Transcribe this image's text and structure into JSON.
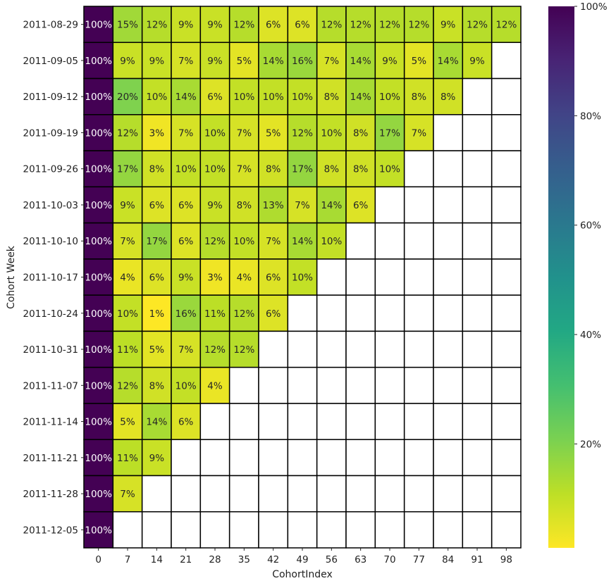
{
  "chart_data": {
    "type": "heatmap",
    "title": "",
    "xlabel": "CohortIndex",
    "ylabel": "Cohort Week",
    "colormap": "viridis_r",
    "value_range": [
      0.01,
      1.0
    ],
    "missing_color": "#ffffff",
    "grid_line_color": "#000000",
    "x_categories": [
      "0",
      "7",
      "14",
      "21",
      "28",
      "35",
      "42",
      "49",
      "56",
      "63",
      "70",
      "77",
      "84",
      "91",
      "98"
    ],
    "y_categories": [
      "2011-08-29",
      "2011-09-05",
      "2011-09-12",
      "2011-09-19",
      "2011-09-26",
      "2011-10-03",
      "2011-10-10",
      "2011-10-17",
      "2011-10-24",
      "2011-10-31",
      "2011-11-07",
      "2011-11-14",
      "2011-11-21",
      "2011-11-28",
      "2011-12-05"
    ],
    "values": [
      [
        100,
        15,
        12,
        9,
        9,
        12,
        6,
        6,
        12,
        12,
        12,
        12,
        9,
        12,
        12
      ],
      [
        100,
        9,
        9,
        7,
        9,
        5,
        14,
        16,
        7,
        14,
        9,
        5,
        14,
        9,
        null
      ],
      [
        100,
        20,
        10,
        14,
        6,
        10,
        10,
        10,
        8,
        14,
        10,
        8,
        8,
        null,
        null
      ],
      [
        100,
        12,
        3,
        7,
        10,
        7,
        5,
        12,
        10,
        8,
        17,
        7,
        null,
        null,
        null
      ],
      [
        100,
        17,
        8,
        10,
        10,
        7,
        8,
        17,
        8,
        8,
        10,
        null,
        null,
        null,
        null
      ],
      [
        100,
        9,
        6,
        6,
        9,
        8,
        13,
        7,
        14,
        6,
        null,
        null,
        null,
        null,
        null
      ],
      [
        100,
        7,
        17,
        6,
        12,
        10,
        7,
        14,
        10,
        null,
        null,
        null,
        null,
        null,
        null
      ],
      [
        100,
        4,
        6,
        9,
        3,
        4,
        6,
        10,
        null,
        null,
        null,
        null,
        null,
        null,
        null
      ],
      [
        100,
        10,
        1,
        16,
        11,
        12,
        6,
        null,
        null,
        null,
        null,
        null,
        null,
        null,
        null
      ],
      [
        100,
        11,
        5,
        7,
        12,
        12,
        null,
        null,
        null,
        null,
        null,
        null,
        null,
        null,
        null
      ],
      [
        100,
        12,
        8,
        10,
        4,
        null,
        null,
        null,
        null,
        null,
        null,
        null,
        null,
        null,
        null
      ],
      [
        100,
        5,
        14,
        6,
        null,
        null,
        null,
        null,
        null,
        null,
        null,
        null,
        null,
        null,
        null
      ],
      [
        100,
        11,
        9,
        null,
        null,
        null,
        null,
        null,
        null,
        null,
        null,
        null,
        null,
        null,
        null
      ],
      [
        100,
        7,
        null,
        null,
        null,
        null,
        null,
        null,
        null,
        null,
        null,
        null,
        null,
        null,
        null
      ],
      [
        100,
        null,
        null,
        null,
        null,
        null,
        null,
        null,
        null,
        null,
        null,
        null,
        null,
        null,
        null
      ]
    ],
    "cell_label_suffix": "%",
    "colorbar_ticks": [
      {
        "value": 100,
        "label": "100%"
      },
      {
        "value": 80,
        "label": "80%"
      },
      {
        "value": 60,
        "label": "60%"
      },
      {
        "value": 40,
        "label": "40%"
      },
      {
        "value": 20,
        "label": "20%"
      }
    ]
  }
}
